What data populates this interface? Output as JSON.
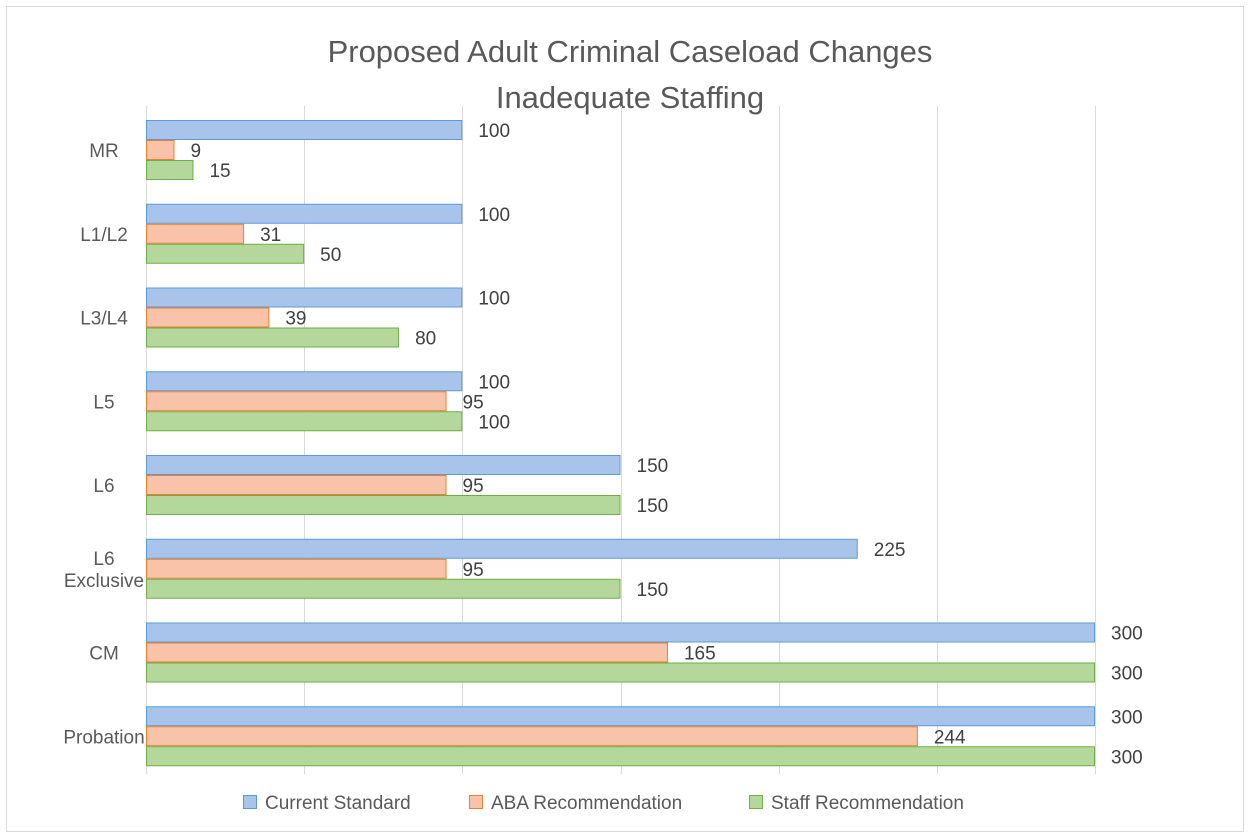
{
  "chart_data": {
    "type": "bar",
    "orientation": "horizontal",
    "title": "Proposed Adult Criminal Caseload Changes",
    "subtitle": "Inadequate Staffing",
    "categories": [
      [
        "MR"
      ],
      [
        "L1/L2"
      ],
      [
        "L3/L4"
      ],
      [
        "L5"
      ],
      [
        "L6"
      ],
      [
        "L6",
        "Exclusive"
      ],
      [
        "CM"
      ],
      [
        "Probation"
      ]
    ],
    "series": [
      {
        "name": "Current Standard",
        "values": [
          100,
          100,
          100,
          100,
          150,
          225,
          300,
          300
        ],
        "color": "#a9c4eb",
        "stroke": "#5b9bd5"
      },
      {
        "name": "ABA Recommendation",
        "values": [
          9,
          31,
          39,
          95,
          95,
          95,
          165,
          244
        ],
        "color": "#f8c3a8",
        "stroke": "#ed7d31"
      },
      {
        "name": "Staff Recommendation",
        "values": [
          15,
          50,
          80,
          100,
          150,
          150,
          300,
          300
        ],
        "color": "#b4d89b",
        "stroke": "#70ad47"
      }
    ],
    "xlim": [
      0,
      300
    ],
    "grid": true,
    "legend_position": "bottom",
    "tick_labels_shown": false
  }
}
